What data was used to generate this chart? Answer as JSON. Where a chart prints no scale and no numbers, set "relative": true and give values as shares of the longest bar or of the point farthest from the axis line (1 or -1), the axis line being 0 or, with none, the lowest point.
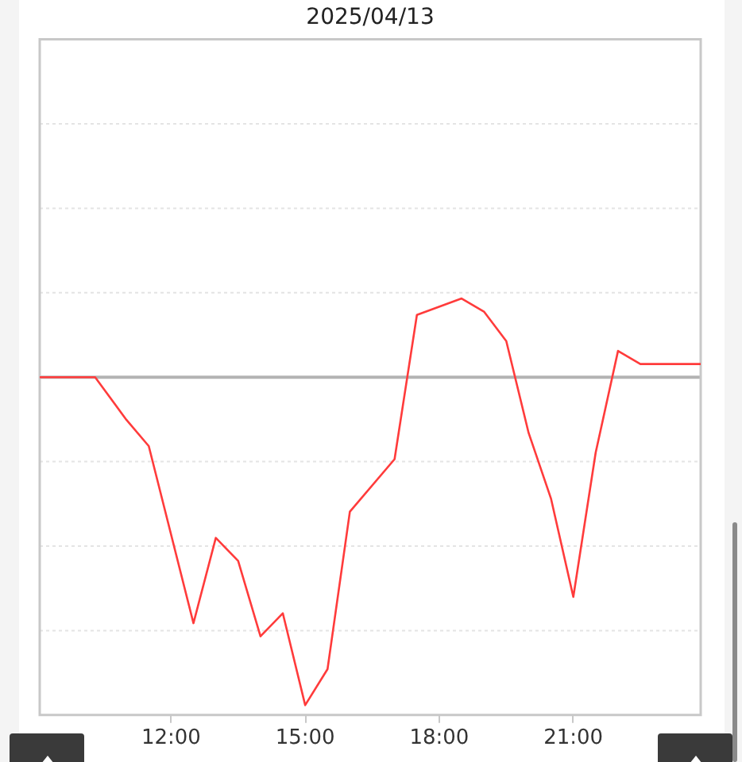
{
  "chart_data": {
    "type": "line",
    "title": "2025/04/13",
    "x": [
      9.06,
      10.3,
      11.0,
      11.5,
      12.5,
      13.0,
      13.5,
      14.0,
      14.5,
      15.0,
      15.5,
      16.0,
      17.0,
      17.5,
      18.5,
      19.0,
      19.5,
      20.0,
      20.5,
      21.0,
      21.5,
      22.0,
      22.5,
      23.85
    ],
    "values": [
      0,
      0,
      -0.13,
      -0.21,
      -0.75,
      -0.49,
      -0.56,
      -0.79,
      -0.72,
      -1,
      -0.89,
      -0.41,
      -0.25,
      0.19,
      0.24,
      0.2,
      0.11,
      -0.17,
      -0.37,
      -0.67,
      -0.23,
      0.08,
      0.04,
      0.04
    ],
    "color": "#ff3b3b",
    "relative": true,
    "xlim": [
      9.06,
      23.85
    ],
    "xticks": [
      {
        "value": 12,
        "label": "12:00"
      },
      {
        "value": 15,
        "label": "15:00"
      },
      {
        "value": 18,
        "label": "18:00"
      },
      {
        "value": 21,
        "label": "21:00"
      }
    ],
    "grid": "y",
    "ref_lines": [
      {
        "axis": "y",
        "value": 0,
        "color": "#b3b3b3"
      }
    ]
  }
}
